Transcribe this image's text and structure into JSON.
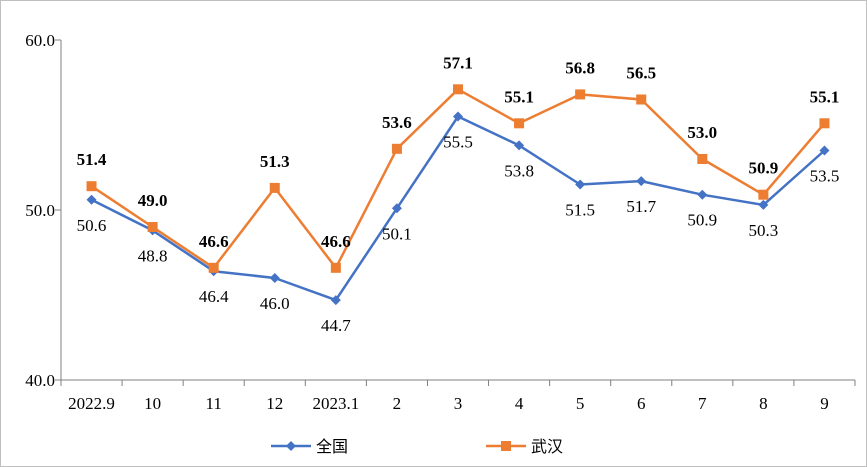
{
  "chart_data": {
    "type": "line",
    "title": "",
    "xlabel": "",
    "ylabel": "",
    "categories": [
      "2022.9",
      "10",
      "11",
      "12",
      "2023.1",
      "2",
      "3",
      "4",
      "5",
      "6",
      "7",
      "8",
      "9"
    ],
    "ylim": [
      40.0,
      60.0
    ],
    "yticks": [
      "40.0",
      "50.0",
      "60.0"
    ],
    "grid": false,
    "legend_position": "bottom",
    "series": [
      {
        "name": "全国",
        "color": "#4472C4",
        "marker": "diamond",
        "values": [
          50.6,
          48.8,
          46.4,
          46.0,
          44.7,
          50.1,
          55.5,
          53.8,
          51.5,
          51.7,
          50.9,
          50.3,
          53.5
        ],
        "labels": [
          "50.6",
          "48.8",
          "46.4",
          "46.0",
          "44.7",
          "50.1",
          "55.5",
          "53.8",
          "51.5",
          "51.7",
          "50.9",
          "50.3",
          "53.5"
        ]
      },
      {
        "name": "武汉",
        "color": "#ED7D31",
        "marker": "square",
        "values": [
          51.4,
          49.0,
          46.6,
          51.3,
          46.6,
          53.6,
          57.1,
          55.1,
          56.8,
          56.5,
          53.0,
          50.9,
          55.1
        ],
        "labels": [
          "51.4",
          "49.0",
          "46.6",
          "51.3",
          "46.6",
          "53.6",
          "57.1",
          "55.1",
          "56.8",
          "56.5",
          "53.0",
          "50.9",
          "55.1"
        ]
      }
    ]
  }
}
